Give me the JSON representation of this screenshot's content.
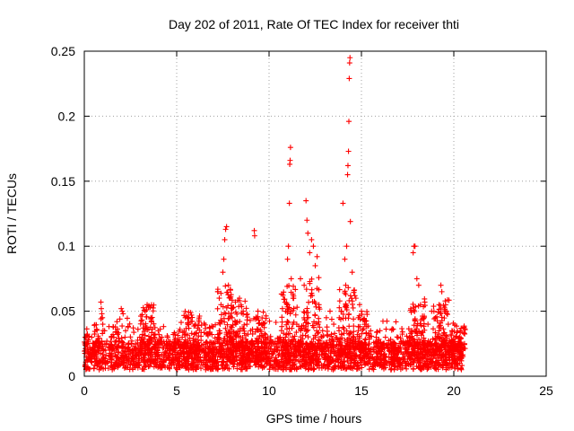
{
  "chart_data": {
    "type": "scatter",
    "title": "Day 202 of 2011, Rate Of TEC Index for receiver thti",
    "xlabel": "GPS time / hours",
    "ylabel": "ROTI / TECUs",
    "xlim": [
      0,
      25
    ],
    "ylim": [
      0,
      0.25
    ],
    "x_ticks": [
      "0",
      "5",
      "10",
      "15",
      "20",
      "25"
    ],
    "y_ticks": [
      "0",
      "0.05",
      "0.1",
      "0.15",
      "0.2",
      "0.25"
    ],
    "grid": true,
    "marker": "+",
    "color": "#ff0000",
    "series": [
      {
        "values_summary": "Dense band of ROTI values mostly 0.005-0.04 TECUs from 0 to 20.5 h",
        "points": [
          [
            0.05,
            0.03
          ],
          [
            0.1,
            0.025
          ],
          [
            0.2,
            0.028
          ],
          [
            0.3,
            0.021
          ],
          [
            0.4,
            0.03
          ],
          [
            0.5,
            0.02
          ],
          [
            0.6,
            0.018
          ],
          [
            0.7,
            0.027
          ],
          [
            0.9,
            0.057
          ],
          [
            0.92,
            0.052
          ],
          [
            0.95,
            0.048
          ],
          [
            0.98,
            0.045
          ],
          [
            1.0,
            0.04
          ],
          [
            1.1,
            0.035
          ],
          [
            1.2,
            0.025
          ],
          [
            1.4,
            0.02
          ],
          [
            1.6,
            0.03
          ],
          [
            1.8,
            0.022
          ],
          [
            2.0,
            0.052
          ],
          [
            2.05,
            0.05
          ],
          [
            2.1,
            0.048
          ],
          [
            2.2,
            0.03
          ],
          [
            2.4,
            0.025
          ],
          [
            2.6,
            0.02
          ],
          [
            2.8,
            0.018
          ],
          [
            3.0,
            0.03
          ],
          [
            3.2,
            0.04
          ],
          [
            3.3,
            0.05
          ],
          [
            3.4,
            0.055
          ],
          [
            3.5,
            0.053
          ],
          [
            3.6,
            0.045
          ],
          [
            3.8,
            0.03
          ],
          [
            4.0,
            0.035
          ],
          [
            4.2,
            0.03
          ],
          [
            4.5,
            0.025
          ],
          [
            4.8,
            0.02
          ],
          [
            5.0,
            0.018
          ],
          [
            5.3,
            0.03
          ],
          [
            5.6,
            0.04
          ],
          [
            5.8,
            0.047
          ],
          [
            6.0,
            0.04
          ],
          [
            6.3,
            0.02
          ],
          [
            6.6,
            0.015
          ],
          [
            7.0,
            0.025
          ],
          [
            7.3,
            0.035
          ],
          [
            7.4,
            0.055
          ],
          [
            7.5,
            0.08
          ],
          [
            7.55,
            0.09
          ],
          [
            7.6,
            0.105
          ],
          [
            7.65,
            0.113
          ],
          [
            7.7,
            0.115
          ],
          [
            7.8,
            0.07
          ],
          [
            7.9,
            0.06
          ],
          [
            8.0,
            0.045
          ],
          [
            8.2,
            0.04
          ],
          [
            8.4,
            0.06
          ],
          [
            8.6,
            0.05
          ],
          [
            8.8,
            0.04
          ],
          [
            9.0,
            0.035
          ],
          [
            9.2,
            0.112
          ],
          [
            9.22,
            0.108
          ],
          [
            9.4,
            0.05
          ],
          [
            9.6,
            0.04
          ],
          [
            9.8,
            0.03
          ],
          [
            10.0,
            0.025
          ],
          [
            10.3,
            0.02
          ],
          [
            10.6,
            0.03
          ],
          [
            10.9,
            0.05
          ],
          [
            11.0,
            0.09
          ],
          [
            11.05,
            0.1
          ],
          [
            11.1,
            0.133
          ],
          [
            11.12,
            0.163
          ],
          [
            11.14,
            0.166
          ],
          [
            11.16,
            0.176
          ],
          [
            11.2,
            0.075
          ],
          [
            11.3,
            0.06
          ],
          [
            11.5,
            0.04
          ],
          [
            11.7,
            0.075
          ],
          [
            11.9,
            0.07
          ],
          [
            12.0,
            0.135
          ],
          [
            12.05,
            0.12
          ],
          [
            12.1,
            0.11
          ],
          [
            12.2,
            0.095
          ],
          [
            12.3,
            0.105
          ],
          [
            12.4,
            0.1
          ],
          [
            12.5,
            0.085
          ],
          [
            12.6,
            0.092
          ],
          [
            12.7,
            0.055
          ],
          [
            12.9,
            0.035
          ],
          [
            13.1,
            0.045
          ],
          [
            13.3,
            0.05
          ],
          [
            13.5,
            0.04
          ],
          [
            13.8,
            0.045
          ],
          [
            14.0,
            0.133
          ],
          [
            14.1,
            0.09
          ],
          [
            14.15,
            0.07
          ],
          [
            14.2,
            0.1
          ],
          [
            14.25,
            0.155
          ],
          [
            14.27,
            0.162
          ],
          [
            14.3,
            0.173
          ],
          [
            14.32,
            0.196
          ],
          [
            14.34,
            0.229
          ],
          [
            14.36,
            0.241
          ],
          [
            14.38,
            0.245
          ],
          [
            14.4,
            0.119
          ],
          [
            14.5,
            0.08
          ],
          [
            14.7,
            0.06
          ],
          [
            14.9,
            0.055
          ],
          [
            15.0,
            0.05
          ],
          [
            15.2,
            0.04
          ],
          [
            15.5,
            0.035
          ],
          [
            15.8,
            0.03
          ],
          [
            16.0,
            0.035
          ],
          [
            16.3,
            0.03
          ],
          [
            16.6,
            0.025
          ],
          [
            17.0,
            0.02
          ],
          [
            17.3,
            0.025
          ],
          [
            17.6,
            0.03
          ],
          [
            17.8,
            0.095
          ],
          [
            17.85,
            0.1
          ],
          [
            17.9,
            0.1
          ],
          [
            18.0,
            0.075
          ],
          [
            18.1,
            0.07
          ],
          [
            18.2,
            0.055
          ],
          [
            18.4,
            0.045
          ],
          [
            18.6,
            0.04
          ],
          [
            18.8,
            0.05
          ],
          [
            19.0,
            0.045
          ],
          [
            19.2,
            0.055
          ],
          [
            19.3,
            0.07
          ],
          [
            19.35,
            0.065
          ],
          [
            19.5,
            0.05
          ],
          [
            19.7,
            0.04
          ],
          [
            19.9,
            0.035
          ],
          [
            20.1,
            0.03
          ],
          [
            20.3,
            0.025
          ],
          [
            20.5,
            0.022
          ]
        ]
      }
    ]
  }
}
